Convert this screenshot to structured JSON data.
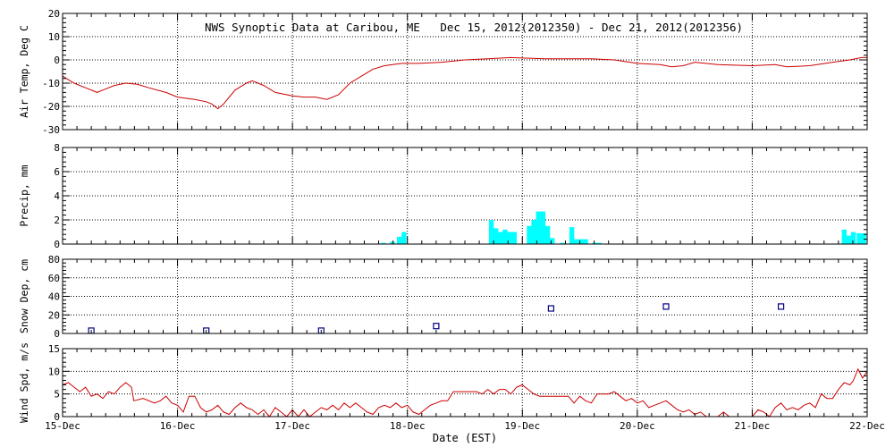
{
  "chart_data": {
    "type": "line",
    "title": "NWS Synoptic Data at Caribou, ME   Dec 15, 2012(2012350) - Dec 21, 2012(2012356)",
    "xlabel": "Date (EST)",
    "x_tick_labels": [
      "15-Dec",
      "16-Dec",
      "17-Dec",
      "18-Dec",
      "19-Dec",
      "20-Dec",
      "21-Dec",
      "22-Dec"
    ],
    "xlim": [
      0,
      7
    ],
    "grid": true,
    "colors": {
      "air_temp": "#cc0000",
      "precip": "#00ffff",
      "snow_depth": "#000080",
      "wind_speed": "#cc0000"
    },
    "panels": [
      {
        "name": "air_temp",
        "ylabel": "Air Temp, Deg C",
        "type": "line",
        "ylim": [
          -30,
          20
        ],
        "y_ticks": [
          20,
          10,
          0,
          -10,
          -20,
          -30
        ],
        "y_tick_labels": [
          "20",
          "10",
          "0",
          "-10",
          "-20",
          "-30"
        ],
        "points": [
          [
            0,
            -7
          ],
          [
            0.1,
            -10
          ],
          [
            0.2,
            -12
          ],
          [
            0.3,
            -14
          ],
          [
            0.35,
            -13
          ],
          [
            0.45,
            -11
          ],
          [
            0.55,
            -10
          ],
          [
            0.65,
            -10.5
          ],
          [
            0.75,
            -12
          ],
          [
            0.9,
            -14
          ],
          [
            1.0,
            -16
          ],
          [
            1.15,
            -17
          ],
          [
            1.25,
            -18
          ],
          [
            1.3,
            -19
          ],
          [
            1.35,
            -21
          ],
          [
            1.4,
            -19
          ],
          [
            1.5,
            -13
          ],
          [
            1.6,
            -10
          ],
          [
            1.65,
            -9
          ],
          [
            1.75,
            -11
          ],
          [
            1.85,
            -14
          ],
          [
            2.0,
            -15.5
          ],
          [
            2.1,
            -16
          ],
          [
            2.2,
            -16
          ],
          [
            2.3,
            -17
          ],
          [
            2.4,
            -15
          ],
          [
            2.5,
            -10
          ],
          [
            2.6,
            -7
          ],
          [
            2.7,
            -4
          ],
          [
            2.8,
            -2.5
          ],
          [
            2.95,
            -1.5
          ],
          [
            3.1,
            -1.5
          ],
          [
            3.3,
            -1
          ],
          [
            3.5,
            0
          ],
          [
            3.7,
            0.5
          ],
          [
            3.9,
            1
          ],
          [
            4.0,
            0.8
          ],
          [
            4.2,
            0.5
          ],
          [
            4.4,
            0.5
          ],
          [
            4.6,
            0.5
          ],
          [
            4.8,
            0
          ],
          [
            5.0,
            -1.5
          ],
          [
            5.2,
            -2
          ],
          [
            5.3,
            -3
          ],
          [
            5.4,
            -2.5
          ],
          [
            5.5,
            -1
          ],
          [
            5.7,
            -2
          ],
          [
            6.0,
            -2.5
          ],
          [
            6.2,
            -2
          ],
          [
            6.3,
            -3
          ],
          [
            6.5,
            -2.5
          ],
          [
            6.7,
            -1
          ],
          [
            6.85,
            0
          ],
          [
            6.95,
            1
          ],
          [
            7.0,
            1
          ]
        ]
      },
      {
        "name": "precip",
        "ylabel": "Precip, mm",
        "type": "bar",
        "ylim": [
          0,
          8
        ],
        "y_ticks": [
          0,
          2,
          4,
          6,
          8
        ],
        "y_tick_labels": [
          "0",
          "2",
          "4",
          "6",
          "8"
        ],
        "bar_width": 0.042,
        "bars": [
          [
            2.79,
            0.1
          ],
          [
            2.87,
            0.2
          ],
          [
            2.93,
            0.6
          ],
          [
            2.97,
            1.0
          ],
          [
            3.73,
            2.0
          ],
          [
            3.77,
            1.3
          ],
          [
            3.81,
            1.0
          ],
          [
            3.85,
            1.2
          ],
          [
            3.89,
            1.0
          ],
          [
            3.93,
            1.0
          ],
          [
            4.06,
            1.5
          ],
          [
            4.1,
            2.0
          ],
          [
            4.14,
            2.7
          ],
          [
            4.18,
            2.7
          ],
          [
            4.22,
            1.5
          ],
          [
            4.26,
            0.5
          ],
          [
            4.35,
            0.1
          ],
          [
            4.43,
            1.4
          ],
          [
            4.47,
            0.4
          ],
          [
            4.51,
            0.4
          ],
          [
            4.55,
            0.4
          ],
          [
            4.63,
            0.1
          ],
          [
            4.67,
            0.1
          ],
          [
            6.8,
            1.2
          ],
          [
            6.84,
            0.7
          ],
          [
            6.88,
            1.0
          ],
          [
            6.93,
            0.9
          ],
          [
            6.97,
            0.9
          ]
        ]
      },
      {
        "name": "snow_depth",
        "ylabel": "Snow Dep, cm",
        "type": "scatter",
        "ylim": [
          0,
          80
        ],
        "y_ticks": [
          0,
          20,
          40,
          60,
          80
        ],
        "y_tick_labels": [
          "0",
          "20",
          "40",
          "60",
          "80"
        ],
        "points": [
          [
            0.25,
            3
          ],
          [
            1.25,
            3
          ],
          [
            2.25,
            3
          ],
          [
            3.25,
            8
          ],
          [
            4.25,
            27
          ],
          [
            5.25,
            29
          ],
          [
            6.25,
            29
          ]
        ]
      },
      {
        "name": "wind_speed",
        "ylabel": "Wind Spd, m/s",
        "type": "line",
        "ylim": [
          0,
          15
        ],
        "y_ticks": [
          0,
          5,
          10,
          15
        ],
        "y_tick_labels": [
          "0",
          "5",
          "10",
          "15"
        ],
        "points": [
          [
            0,
            7
          ],
          [
            0.05,
            7.5
          ],
          [
            0.1,
            6.5
          ],
          [
            0.15,
            5.5
          ],
          [
            0.2,
            6.5
          ],
          [
            0.25,
            4.5
          ],
          [
            0.3,
            5
          ],
          [
            0.35,
            4
          ],
          [
            0.4,
            5.5
          ],
          [
            0.45,
            5
          ],
          [
            0.5,
            6.5
          ],
          [
            0.55,
            7.5
          ],
          [
            0.6,
            6.5
          ],
          [
            0.62,
            3.5
          ],
          [
            0.7,
            4
          ],
          [
            0.8,
            3
          ],
          [
            0.85,
            3.5
          ],
          [
            0.9,
            4.5
          ],
          [
            0.95,
            3
          ],
          [
            1.0,
            2.5
          ],
          [
            1.05,
            1
          ],
          [
            1.1,
            4.5
          ],
          [
            1.15,
            4.5
          ],
          [
            1.2,
            2
          ],
          [
            1.25,
            1
          ],
          [
            1.3,
            1.5
          ],
          [
            1.35,
            2.5
          ],
          [
            1.4,
            1
          ],
          [
            1.45,
            0.5
          ],
          [
            1.5,
            2
          ],
          [
            1.55,
            3
          ],
          [
            1.6,
            2
          ],
          [
            1.65,
            1.5
          ],
          [
            1.7,
            0.5
          ],
          [
            1.75,
            1.5
          ],
          [
            1.8,
            0
          ],
          [
            1.85,
            2
          ],
          [
            1.9,
            1
          ],
          [
            1.95,
            0
          ],
          [
            2.0,
            1.5
          ],
          [
            2.05,
            0
          ],
          [
            2.1,
            1.5
          ],
          [
            2.15,
            0
          ],
          [
            2.2,
            1
          ],
          [
            2.25,
            2
          ],
          [
            2.3,
            1.5
          ],
          [
            2.35,
            2.5
          ],
          [
            2.4,
            1.5
          ],
          [
            2.45,
            3
          ],
          [
            2.5,
            2
          ],
          [
            2.55,
            3
          ],
          [
            2.6,
            2
          ],
          [
            2.65,
            1
          ],
          [
            2.7,
            0.5
          ],
          [
            2.75,
            2
          ],
          [
            2.8,
            2.5
          ],
          [
            2.85,
            2
          ],
          [
            2.9,
            3
          ],
          [
            2.95,
            2
          ],
          [
            3.0,
            2.5
          ],
          [
            3.05,
            1
          ],
          [
            3.1,
            0.5
          ],
          [
            3.15,
            1.5
          ],
          [
            3.2,
            2.5
          ],
          [
            3.25,
            3
          ],
          [
            3.3,
            3.5
          ],
          [
            3.35,
            3.5
          ],
          [
            3.4,
            5.5
          ],
          [
            3.5,
            5.5
          ],
          [
            3.6,
            5.5
          ],
          [
            3.65,
            5
          ],
          [
            3.7,
            6
          ],
          [
            3.75,
            5
          ],
          [
            3.8,
            6
          ],
          [
            3.85,
            6
          ],
          [
            3.9,
            5
          ],
          [
            3.95,
            6.5
          ],
          [
            4.0,
            7
          ],
          [
            4.05,
            6
          ],
          [
            4.1,
            5
          ],
          [
            4.15,
            4.5
          ],
          [
            4.3,
            4.5
          ],
          [
            4.4,
            4.5
          ],
          [
            4.45,
            3
          ],
          [
            4.5,
            4.5
          ],
          [
            4.55,
            3.5
          ],
          [
            4.6,
            3
          ],
          [
            4.65,
            5
          ],
          [
            4.75,
            5
          ],
          [
            4.8,
            5.5
          ],
          [
            4.85,
            4.5
          ],
          [
            4.9,
            3.5
          ],
          [
            4.95,
            4
          ],
          [
            5.0,
            3
          ],
          [
            5.05,
            3.5
          ],
          [
            5.1,
            2
          ],
          [
            5.15,
            2.5
          ],
          [
            5.2,
            3
          ],
          [
            5.25,
            3.5
          ],
          [
            5.3,
            2.5
          ],
          [
            5.35,
            1.5
          ],
          [
            5.4,
            1
          ],
          [
            5.45,
            1.5
          ],
          [
            5.5,
            0.5
          ],
          [
            5.55,
            1
          ],
          [
            5.6,
            0
          ],
          [
            5.65,
            0
          ],
          [
            5.7,
            0
          ],
          [
            5.75,
            1
          ],
          [
            5.8,
            0
          ],
          [
            5.9,
            0
          ],
          [
            6.0,
            0
          ],
          [
            6.05,
            1.5
          ],
          [
            6.1,
            1
          ],
          [
            6.15,
            0
          ],
          [
            6.2,
            2
          ],
          [
            6.25,
            3
          ],
          [
            6.3,
            1.5
          ],
          [
            6.35,
            2
          ],
          [
            6.4,
            1.5
          ],
          [
            6.45,
            2.5
          ],
          [
            6.5,
            3
          ],
          [
            6.55,
            2
          ],
          [
            6.6,
            5
          ],
          [
            6.65,
            4
          ],
          [
            6.7,
            4
          ],
          [
            6.75,
            6
          ],
          [
            6.8,
            7.5
          ],
          [
            6.85,
            7
          ],
          [
            6.88,
            8
          ],
          [
            6.92,
            10.5
          ],
          [
            6.96,
            8.5
          ],
          [
            7.0,
            10
          ]
        ]
      }
    ]
  }
}
